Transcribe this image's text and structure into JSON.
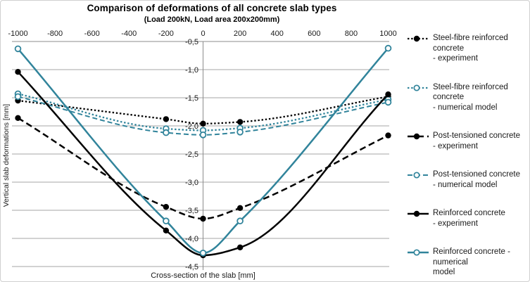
{
  "chart_data": {
    "type": "line",
    "title": "Comparison of deformations of all concrete slab types",
    "subtitle": "(Load 200kN,  Load area 200x200mm)",
    "xlabel": "Cross-section of the slab [mm]",
    "ylabel": "Vertical slab deformations [mm]",
    "x_ticks": [
      -1000,
      -800,
      -600,
      -400,
      -200,
      0,
      200,
      400,
      600,
      800,
      1000
    ],
    "y_ticks": [
      -0.5,
      -1.0,
      -1.5,
      -2.0,
      -2.5,
      -3.0,
      -3.5,
      -4.0,
      -4.5
    ],
    "y_tick_labels": [
      "-0,5",
      "-1,0",
      "-1,5",
      "-2,0",
      "-2,5",
      "-3,0",
      "-3,5",
      "-4,0",
      "-4,5"
    ],
    "ylim": [
      -4.5,
      -0.5
    ],
    "xlim": [
      -1030,
      1010
    ],
    "grid": "horizontal",
    "legend_position": "right",
    "smooth": true,
    "x": [
      -1000,
      -200,
      0,
      200,
      1000
    ],
    "series": [
      {
        "name": "Steel-fibre reinforced concrete - experiment",
        "legend_lines": [
          "Steel-fibre reinforced concrete",
          "- experiment"
        ],
        "color": "#000000",
        "line": "dotted",
        "marker": "filled",
        "values": [
          -1.55,
          -1.88,
          -1.96,
          -1.93,
          -1.48
        ]
      },
      {
        "name": "Steel-fibre reinforced concrete - numerical model",
        "legend_lines": [
          "Steel-fibre reinforced concrete",
          "- numerical model"
        ],
        "color": "#31849B",
        "line": "dotted",
        "marker": "open",
        "values": [
          -1.43,
          -2.05,
          -2.08,
          -2.04,
          -1.53
        ]
      },
      {
        "name": "Post-tensioned concrete - experiment",
        "legend_lines": [
          "Post-tensioned concrete",
          "- experiment"
        ],
        "color": "#000000",
        "line": "dashed",
        "marker": "filled",
        "values": [
          -1.86,
          -3.44,
          -3.65,
          -3.46,
          -2.17
        ]
      },
      {
        "name": "Post-tensioned concrete - numerical model",
        "legend_lines": [
          "Post-tensioned concrete",
          "- numerical model"
        ],
        "color": "#31849B",
        "line": "dashed",
        "marker": "open",
        "values": [
          -1.48,
          -2.12,
          -2.16,
          -2.11,
          -1.58
        ]
      },
      {
        "name": "Reinforced concrete - experiment",
        "legend_lines": [
          "Reinforced concrete",
          "- experiment"
        ],
        "color": "#000000",
        "line": "solid",
        "marker": "filled",
        "values": [
          -1.04,
          -3.86,
          -4.3,
          -4.16,
          -1.44
        ]
      },
      {
        "name": "Reinforced concrete - numerical model",
        "legend_lines": [
          "Reinforced concrete - numerical",
          "model"
        ],
        "color": "#31849B",
        "line": "solid",
        "marker": "open",
        "values": [
          -0.63,
          -3.69,
          -4.26,
          -3.69,
          -0.62
        ]
      }
    ]
  },
  "colors": {
    "teal": "#31849B",
    "black": "#000000",
    "gridline": "#A6A6A6",
    "axis": "#8C8C8C",
    "background": "#FFFFFF"
  }
}
